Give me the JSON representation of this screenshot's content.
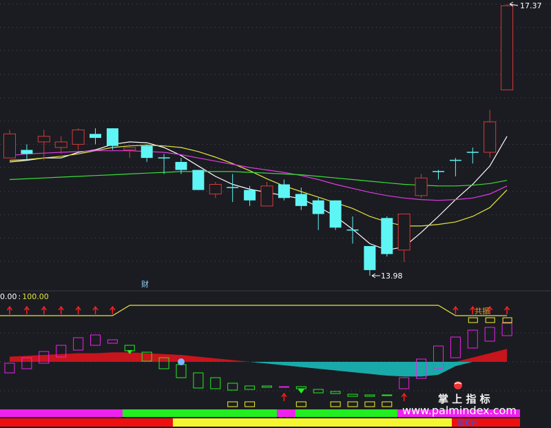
{
  "colors": {
    "background": "#1b1c21",
    "up": "#d83a3a",
    "down": "#5ef5f5",
    "ma5": "#ffffff",
    "ma10": "#e6e640",
    "ma20": "#e23ae6",
    "ma60": "#3adf3a",
    "signal": "#e6e640",
    "arrow": "#ff2020",
    "macd_pos": "#c8141c",
    "macd_neg": "#1aa9a9",
    "green": "#22ee22",
    "magenta": "#ee22ee",
    "yellow": "#f5f530",
    "red": "#ee1010",
    "white": "#ffffff"
  },
  "chart_data": [
    {
      "type": "candlestick",
      "high_label": "17.37",
      "low_label": "13.98",
      "caption": "财",
      "ylim": [
        13.6,
        17.5
      ],
      "gridlines": [
        17.37,
        17.08,
        16.79,
        16.49,
        16.2,
        15.91,
        15.62,
        15.33,
        15.03,
        14.74,
        14.45,
        14.16
      ],
      "candles": [
        {
          "o": 15.45,
          "c": 15.75,
          "h": 15.8,
          "l": 15.45
        },
        {
          "o": 15.55,
          "c": 15.5,
          "h": 15.62,
          "l": 15.42
        },
        {
          "o": 15.65,
          "c": 15.72,
          "h": 15.8,
          "l": 15.42
        },
        {
          "o": 15.58,
          "c": 15.65,
          "h": 15.72,
          "l": 15.5
        },
        {
          "o": 15.62,
          "c": 15.8,
          "h": 15.82,
          "l": 15.55
        },
        {
          "o": 15.75,
          "c": 15.7,
          "h": 15.82,
          "l": 15.62
        },
        {
          "o": 15.82,
          "c": 15.6,
          "h": 15.82,
          "l": 15.55
        },
        {
          "o": 15.55,
          "c": 15.58,
          "h": 15.62,
          "l": 15.45
        },
        {
          "o": 15.6,
          "c": 15.45,
          "h": 15.62,
          "l": 15.4
        },
        {
          "o": 15.45,
          "c": 15.45,
          "h": 15.5,
          "l": 15.25
        },
        {
          "o": 15.4,
          "c": 15.3,
          "h": 15.45,
          "l": 15.25
        },
        {
          "o": 15.3,
          "c": 15.05,
          "h": 15.3,
          "l": 15.05
        },
        {
          "o": 15.0,
          "c": 15.12,
          "h": 15.15,
          "l": 14.95
        },
        {
          "o": 15.08,
          "c": 15.08,
          "h": 15.25,
          "l": 14.9
        },
        {
          "o": 15.05,
          "c": 14.92,
          "h": 15.1,
          "l": 14.85
        },
        {
          "o": 14.85,
          "c": 15.1,
          "h": 15.15,
          "l": 14.85
        },
        {
          "o": 15.12,
          "c": 14.95,
          "h": 15.18,
          "l": 14.92
        },
        {
          "o": 15.0,
          "c": 14.85,
          "h": 15.08,
          "l": 14.8
        },
        {
          "o": 14.92,
          "c": 14.75,
          "h": 14.95,
          "l": 14.55
        },
        {
          "o": 14.92,
          "c": 14.58,
          "h": 14.92,
          "l": 14.55
        },
        {
          "o": 14.55,
          "c": 14.55,
          "h": 14.72,
          "l": 14.38
        },
        {
          "o": 14.35,
          "c": 14.05,
          "h": 14.35,
          "l": 13.98
        },
        {
          "o": 14.7,
          "c": 14.25,
          "h": 14.72,
          "l": 14.22
        },
        {
          "o": 14.3,
          "c": 14.75,
          "h": 14.75,
          "l": 14.15
        },
        {
          "o": 14.98,
          "c": 15.2,
          "h": 15.25,
          "l": 14.95
        },
        {
          "o": 15.28,
          "c": 15.28,
          "h": 15.3,
          "l": 15.18
        },
        {
          "o": 15.42,
          "c": 15.42,
          "h": 15.45,
          "l": 15.22
        },
        {
          "o": 15.52,
          "c": 15.52,
          "h": 15.58,
          "l": 15.38
        },
        {
          "o": 15.52,
          "c": 15.9,
          "h": 16.05,
          "l": 15.45
        },
        {
          "o": 16.3,
          "c": 17.35,
          "h": 17.37,
          "l": 16.3
        }
      ],
      "series": [
        {
          "name": "MA5",
          "values": [
            15.4,
            15.42,
            15.45,
            15.45,
            15.52,
            15.55,
            15.62,
            15.65,
            15.64,
            15.58,
            15.48,
            15.35,
            15.22,
            15.12,
            15.06,
            15.02,
            14.98,
            14.94,
            14.84,
            14.72,
            14.56,
            14.38,
            14.3,
            14.34,
            14.52,
            14.72,
            14.93,
            15.12,
            15.35,
            15.72
          ]
        },
        {
          "name": "MA10",
          "values": [
            15.42,
            15.43,
            15.45,
            15.47,
            15.5,
            15.54,
            15.58,
            15.6,
            15.61,
            15.6,
            15.58,
            15.53,
            15.46,
            15.38,
            15.29,
            15.19,
            15.1,
            15.03,
            14.96,
            14.89,
            14.82,
            14.72,
            14.65,
            14.6,
            14.6,
            14.62,
            14.65,
            14.72,
            14.83,
            15.05
          ]
        },
        {
          "name": "MA20",
          "values": [
            15.48,
            15.5,
            15.51,
            15.52,
            15.53,
            15.54,
            15.54,
            15.54,
            15.53,
            15.52,
            15.49,
            15.45,
            15.41,
            15.37,
            15.33,
            15.3,
            15.27,
            15.23,
            15.18,
            15.12,
            15.07,
            15.02,
            14.98,
            14.95,
            14.93,
            14.92,
            14.93,
            14.95,
            15.0,
            15.1
          ]
        },
        {
          "name": "MA60",
          "values": [
            15.18,
            15.19,
            15.2,
            15.21,
            15.22,
            15.23,
            15.24,
            15.25,
            15.26,
            15.27,
            15.28,
            15.28,
            15.28,
            15.28,
            15.27,
            15.26,
            15.25,
            15.24,
            15.22,
            15.2,
            15.18,
            15.16,
            15.14,
            15.12,
            15.11,
            15.1,
            15.1,
            15.11,
            15.13,
            15.17
          ]
        }
      ]
    },
    {
      "type": "indicator",
      "label_left": "0.00",
      "label_sep": ":",
      "label_value": "100.00",
      "resonance_label": "共振",
      "signal_line": [
        0,
        0,
        0,
        0,
        0,
        0,
        0,
        100,
        100,
        100,
        100,
        100,
        100,
        100,
        100,
        100,
        100,
        100,
        100,
        100,
        100,
        100,
        100,
        100,
        100,
        100,
        0,
        0,
        0,
        0
      ],
      "macd": [
        6,
        7,
        8,
        9,
        10,
        10,
        11,
        11,
        10,
        9,
        8,
        6,
        4,
        2,
        0,
        -2,
        -4,
        -6,
        -8,
        -10,
        -12,
        -14,
        -16,
        -17,
        -17,
        -15,
        -5,
        5,
        10,
        15
      ],
      "watermark_cn": "掌 上 指 标",
      "watermark_url": "www.palmindex.com",
      "footer_label": "周K分"
    }
  ]
}
